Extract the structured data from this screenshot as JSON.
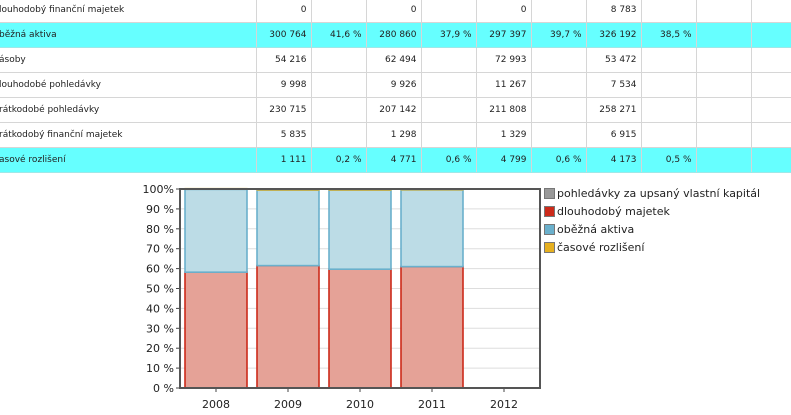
{
  "table": {
    "rows": [
      {
        "label": "louhodobý finanční majetek",
        "highlight": false,
        "cells": [
          "0",
          "",
          "0",
          "",
          "0",
          "",
          "8 783",
          "",
          "",
          ""
        ]
      },
      {
        "label": "běžná aktiva",
        "highlight": true,
        "cells": [
          "300 764",
          "41,6 %",
          "280 860",
          "37,9 %",
          "297 397",
          "39,7 %",
          "326 192",
          "38,5 %",
          "",
          ""
        ]
      },
      {
        "label": "ásoby",
        "highlight": false,
        "cells": [
          "54 216",
          "",
          "62 494",
          "",
          "72 993",
          "",
          "53 472",
          "",
          "",
          ""
        ]
      },
      {
        "label": "louhodobé pohledávky",
        "highlight": false,
        "cells": [
          "9 998",
          "",
          "9 926",
          "",
          "11 267",
          "",
          "7 534",
          "",
          "",
          ""
        ]
      },
      {
        "label": "rátkodobé pohledávky",
        "highlight": false,
        "cells": [
          "230 715",
          "",
          "207 142",
          "",
          "211 808",
          "",
          "258 271",
          "",
          "",
          ""
        ]
      },
      {
        "label": "rátkodobý finanční majetek",
        "highlight": false,
        "cells": [
          "5 835",
          "",
          "1 298",
          "",
          "1 329",
          "",
          "6 915",
          "",
          "",
          ""
        ]
      },
      {
        "label": "asové rozlišení",
        "highlight": true,
        "cells": [
          "1 111",
          "0,2 %",
          "4 771",
          "0,6 %",
          "4 799",
          "0,6 %",
          "4 173",
          "0,5 %",
          "",
          ""
        ]
      }
    ]
  },
  "chart_data": {
    "type": "bar",
    "stacked": true,
    "categories": [
      "2008",
      "2009",
      "2010",
      "2011",
      "2012"
    ],
    "series": [
      {
        "name": "pohledávky za upsaný vlastní kapitál",
        "color": "#999999",
        "values": [
          0,
          0,
          0,
          0,
          0
        ]
      },
      {
        "name": "dlouhodobý majetek",
        "color": "#cc2a1a",
        "fill": "#e5a297",
        "values": [
          58.2,
          61.5,
          59.7,
          61.0,
          0
        ]
      },
      {
        "name": "oběžná aktiva",
        "color": "#6ab0cc",
        "fill": "#bcdce6",
        "values": [
          41.6,
          37.9,
          39.7,
          38.5,
          0
        ]
      },
      {
        "name": "časové rozlišení",
        "color": "#e6b020",
        "values": [
          0.2,
          0.6,
          0.6,
          0.5,
          0
        ]
      }
    ],
    "ylim": [
      0,
      100
    ],
    "yticks": [
      "0 %",
      "10 %",
      "20 %",
      "30 %",
      "40 %",
      "50 %",
      "60 %",
      "70 %",
      "80 %",
      "90 %",
      "100%"
    ],
    "grid": true,
    "legend": "right"
  }
}
